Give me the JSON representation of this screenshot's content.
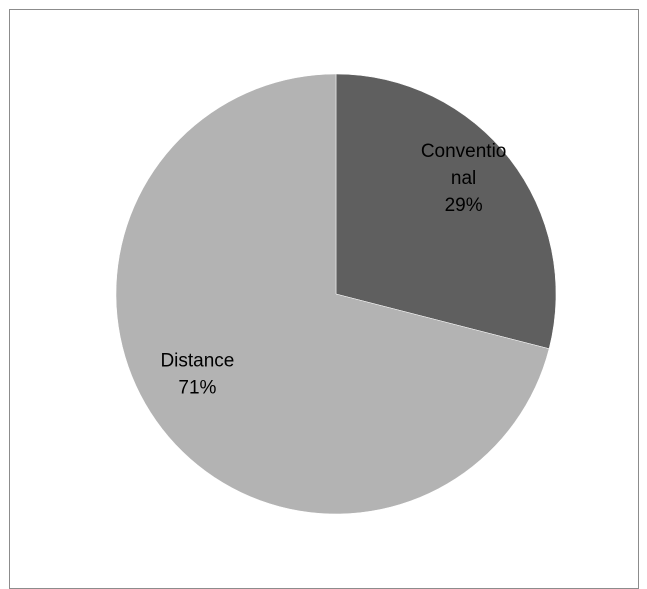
{
  "chart_data": {
    "type": "pie",
    "title": "",
    "slices": [
      {
        "label_lines": [
          "Conventio",
          "nal"
        ],
        "label": "Conventional",
        "value": 29,
        "value_label": "29%",
        "color": "#5f5f5f"
      },
      {
        "label_lines": [
          "Distance"
        ],
        "label": "Distance",
        "value": 71,
        "value_label": "71%",
        "color": "#b3b3b3"
      }
    ],
    "start_angle_deg": 0,
    "direction": "clockwise",
    "legend": "none"
  }
}
